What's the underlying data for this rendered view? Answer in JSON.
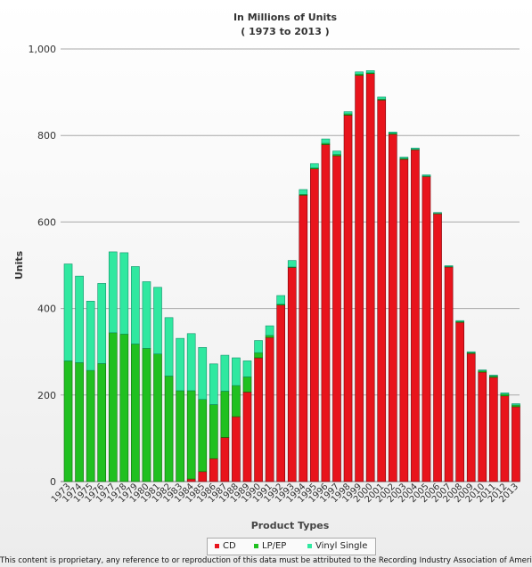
{
  "chart_data": {
    "type": "bar",
    "stacked": true,
    "title": "In Millions of Units",
    "subtitle": "( 1973 to 2013 )",
    "xlabel": "Product Types",
    "ylabel": "Units",
    "ylim": [
      0,
      1000
    ],
    "yticks": [
      0,
      200,
      400,
      600,
      800,
      1000
    ],
    "ytick_labels": [
      "0",
      "200",
      "400",
      "600",
      "800",
      "1,000"
    ],
    "grid": true,
    "legend_position": "bottom",
    "categories": [
      "1973",
      "1974",
      "1975",
      "1976",
      "1977",
      "1978",
      "1979",
      "1980",
      "1981",
      "1982",
      "1983",
      "1984",
      "1985",
      "1986",
      "1987",
      "1988",
      "1989",
      "1990",
      "1991",
      "1992",
      "1993",
      "1994",
      "1995",
      "1996",
      "1997",
      "1998",
      "1999",
      "2000",
      "2001",
      "2002",
      "2003",
      "2004",
      "2005",
      "2006",
      "2007",
      "2008",
      "2009",
      "2010",
      "2011",
      "2012",
      "2013"
    ],
    "series": [
      {
        "name": "CD",
        "color": "#e8141c",
        "values": [
          0,
          0,
          0,
          0,
          0,
          0,
          0,
          0,
          0,
          0,
          0,
          6,
          23,
          53,
          102,
          150,
          207,
          286,
          333,
          408,
          495,
          662,
          723,
          779,
          753,
          847,
          939,
          943,
          882,
          803,
          745,
          767,
          705,
          619,
          496,
          368,
          296,
          253,
          241,
          198,
          173
        ]
      },
      {
        "name": "LP/EP",
        "color": "#20c020",
        "values": [
          279,
          275,
          257,
          273,
          344,
          341,
          318,
          308,
          295,
          244,
          210,
          204,
          167,
          125,
          107,
          72,
          35,
          12,
          5,
          2,
          1,
          2,
          2,
          3,
          3,
          3,
          3,
          2,
          2,
          2,
          2,
          1,
          1,
          1,
          1,
          2,
          2,
          3,
          3,
          4,
          4
        ]
      },
      {
        "name": "Vinyl Single",
        "color": "#30e8a0",
        "values": [
          224,
          200,
          160,
          185,
          187,
          188,
          179,
          154,
          154,
          135,
          121,
          132,
          120,
          94,
          83,
          64,
          37,
          28,
          22,
          20,
          15,
          11,
          10,
          10,
          8,
          5,
          5,
          5,
          5,
          3,
          3,
          3,
          3,
          2,
          2,
          2,
          2,
          2,
          2,
          3,
          3
        ]
      }
    ]
  },
  "footer": "This content is proprietary, any reference to or reproduction of this data must be attributed to the Recording Industry Association of America."
}
